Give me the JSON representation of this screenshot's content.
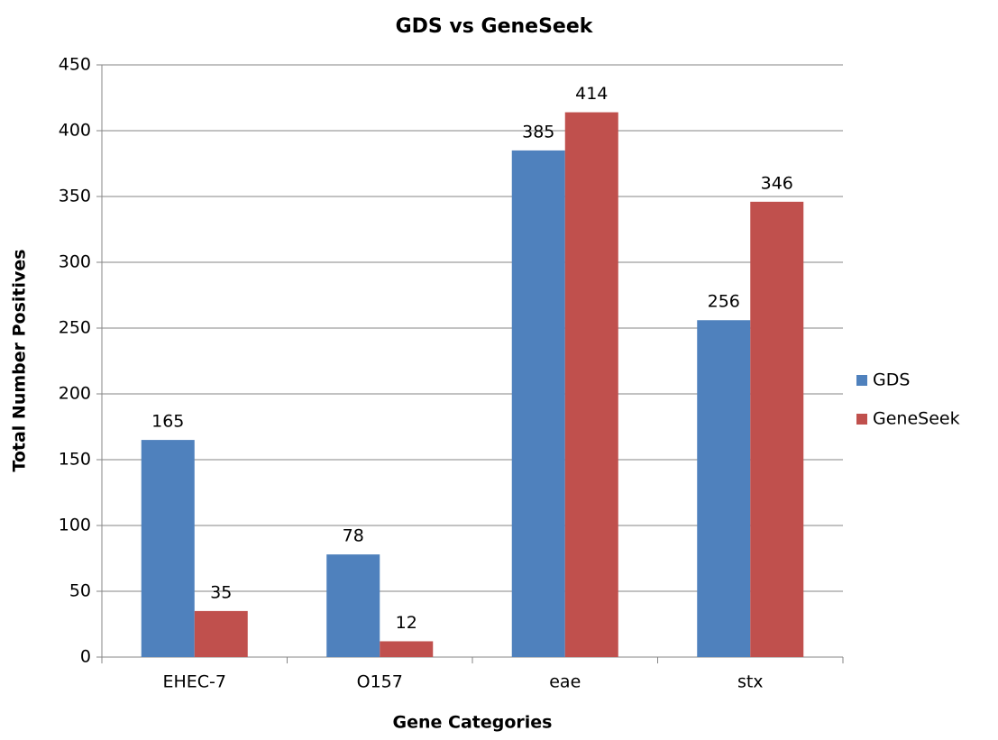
{
  "chart_data": {
    "type": "bar",
    "title": "GDS vs GeneSeek",
    "x_label": "Gene Categories",
    "y_label": "Total Number Positives",
    "categories": [
      "EHEC-7",
      "O157",
      "eae",
      "stx"
    ],
    "series": [
      {
        "name": "GDS",
        "color": "#4f81bd",
        "values": [
          165,
          78,
          385,
          256
        ]
      },
      {
        "name": "GeneSeek",
        "color": "#c0504d",
        "values": [
          35,
          12,
          414,
          346
        ]
      }
    ],
    "ylim": [
      0,
      450
    ],
    "yticks": [
      0,
      50,
      100,
      150,
      200,
      250,
      300,
      350,
      400,
      450
    ],
    "grid": true,
    "legend": "right"
  }
}
